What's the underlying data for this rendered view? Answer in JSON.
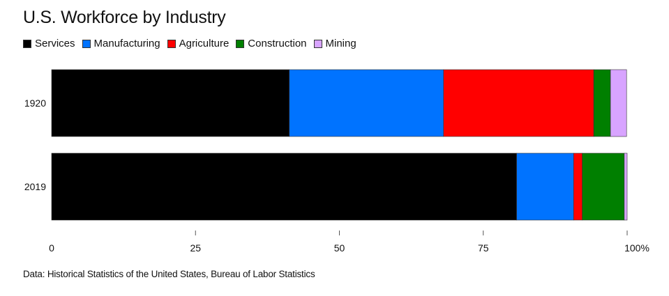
{
  "chart_data": {
    "type": "bar",
    "orientation": "horizontal",
    "stacked": true,
    "title": "U.S. Workforce by Industry",
    "categories": [
      "1920",
      "2019"
    ],
    "series": [
      {
        "name": "Services",
        "color": "#000000",
        "values": [
          41.3,
          80.8
        ]
      },
      {
        "name": "Manufacturing",
        "color": "#0073ff",
        "values": [
          26.8,
          9.9
        ]
      },
      {
        "name": "Agriculture",
        "color": "#ff0000",
        "values": [
          26.1,
          1.5
        ]
      },
      {
        "name": "Construction",
        "color": "#007f00",
        "values": [
          2.9,
          7.3
        ]
      },
      {
        "name": "Mining",
        "color": "#d8a4ff",
        "values": [
          2.8,
          0.5
        ]
      }
    ],
    "xlabel": "",
    "ylabel": "",
    "xlim": [
      0,
      100
    ],
    "xticks": [
      0,
      25,
      50,
      75,
      100
    ],
    "xtick_labels": [
      "0",
      "25",
      "50",
      "75",
      "100%"
    ],
    "legend_position": "top-left",
    "grid": false,
    "source": "Data: Historical Statistics of the United States, Bureau of Labor Statistics"
  }
}
